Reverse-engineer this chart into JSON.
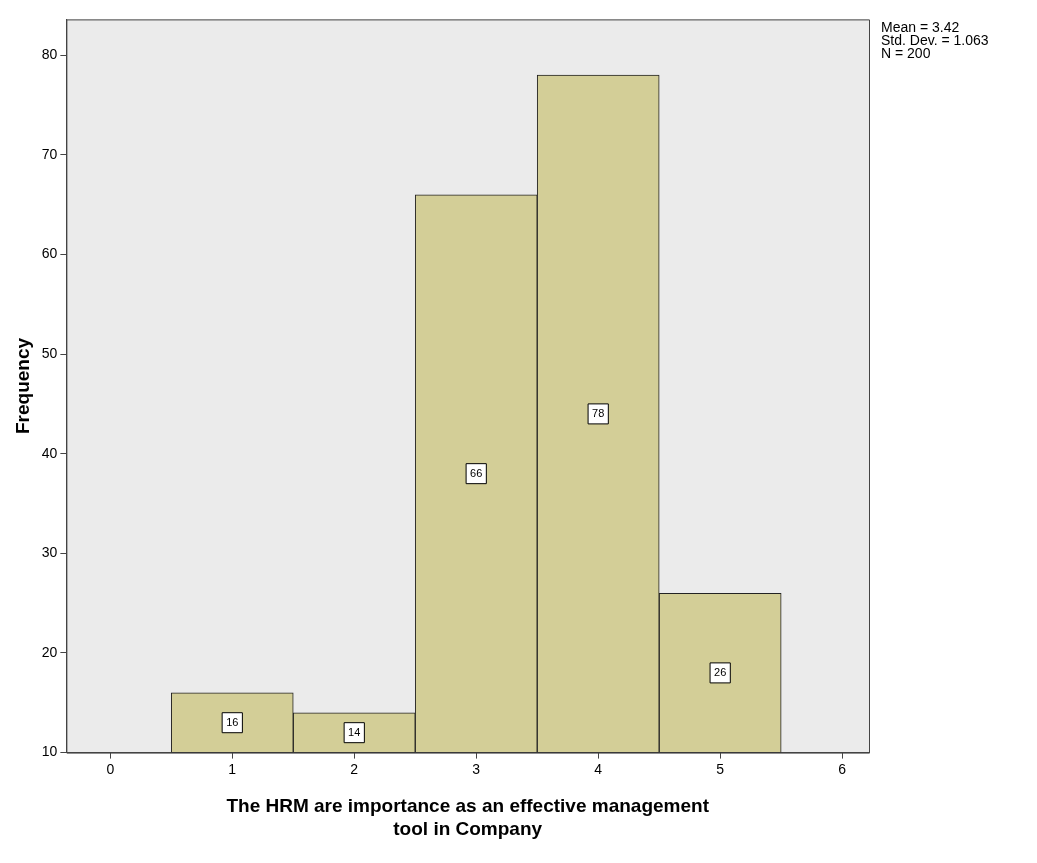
{
  "chart_data": {
    "type": "histogram",
    "xlabel": "The HRM are importance as an effective management tool in Company",
    "ylabel": "Frequency",
    "bins": [
      0.5,
      1.5,
      2.5,
      3.5,
      4.5,
      5.5
    ],
    "values": [
      16,
      14,
      66,
      78,
      26
    ],
    "color": "#d3ce97",
    "data_labels": true,
    "xlim": [
      -0.36,
      6.22
    ],
    "xticks": [
      0,
      1,
      2,
      3,
      4,
      5,
      6
    ],
    "ylim": [
      10,
      83.6
    ],
    "yticks": [
      10,
      20,
      30,
      40,
      50,
      60,
      70,
      80
    ],
    "grid": false,
    "legend": false,
    "annotations": [
      "Mean = 3.42",
      "Std. Dev. = 1.063",
      "N = 200"
    ]
  }
}
